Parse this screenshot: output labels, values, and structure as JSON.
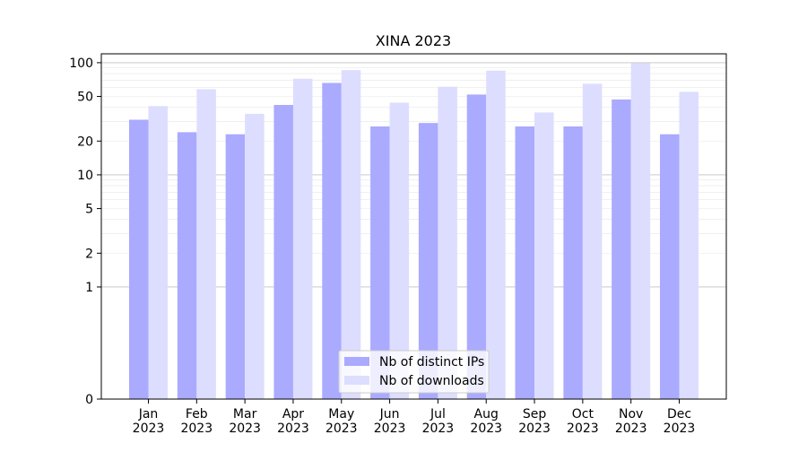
{
  "chart_data": {
    "type": "bar",
    "title": "XINA 2023",
    "xlabel": "",
    "ylabel": "",
    "y_scale": "symlog",
    "ylim": [
      0,
      120
    ],
    "yticks": [
      0,
      1,
      2,
      5,
      10,
      20,
      50,
      100
    ],
    "ytick_labels": [
      "0",
      "1",
      "2",
      "5",
      "10",
      "20",
      "50",
      "100"
    ],
    "grid": true,
    "legend_position": "bottom-center",
    "categories": [
      "Jan\n2023",
      "Feb\n2023",
      "Mar\n2023",
      "Apr\n2023",
      "May\n2023",
      "Jun\n2023",
      "Jul\n2023",
      "Aug\n2023",
      "Sep\n2023",
      "Oct\n2023",
      "Nov\n2023",
      "Dec\n2023"
    ],
    "category_lines": [
      [
        "Jan",
        "2023"
      ],
      [
        "Feb",
        "2023"
      ],
      [
        "Mar",
        "2023"
      ],
      [
        "Apr",
        "2023"
      ],
      [
        "May",
        "2023"
      ],
      [
        "Jun",
        "2023"
      ],
      [
        "Jul",
        "2023"
      ],
      [
        "Aug",
        "2023"
      ],
      [
        "Sep",
        "2023"
      ],
      [
        "Oct",
        "2023"
      ],
      [
        "Nov",
        "2023"
      ],
      [
        "Dec",
        "2023"
      ]
    ],
    "series": [
      {
        "name": "Nb of distinct IPs",
        "color": "#aaaaff",
        "values": [
          31,
          24,
          23,
          42,
          66,
          27,
          29,
          52,
          27,
          27,
          47,
          23
        ]
      },
      {
        "name": "Nb of downloads",
        "color": "#ddddff",
        "values": [
          41,
          58,
          35,
          72,
          86,
          44,
          61,
          85,
          36,
          65,
          99,
          55
        ]
      }
    ]
  }
}
